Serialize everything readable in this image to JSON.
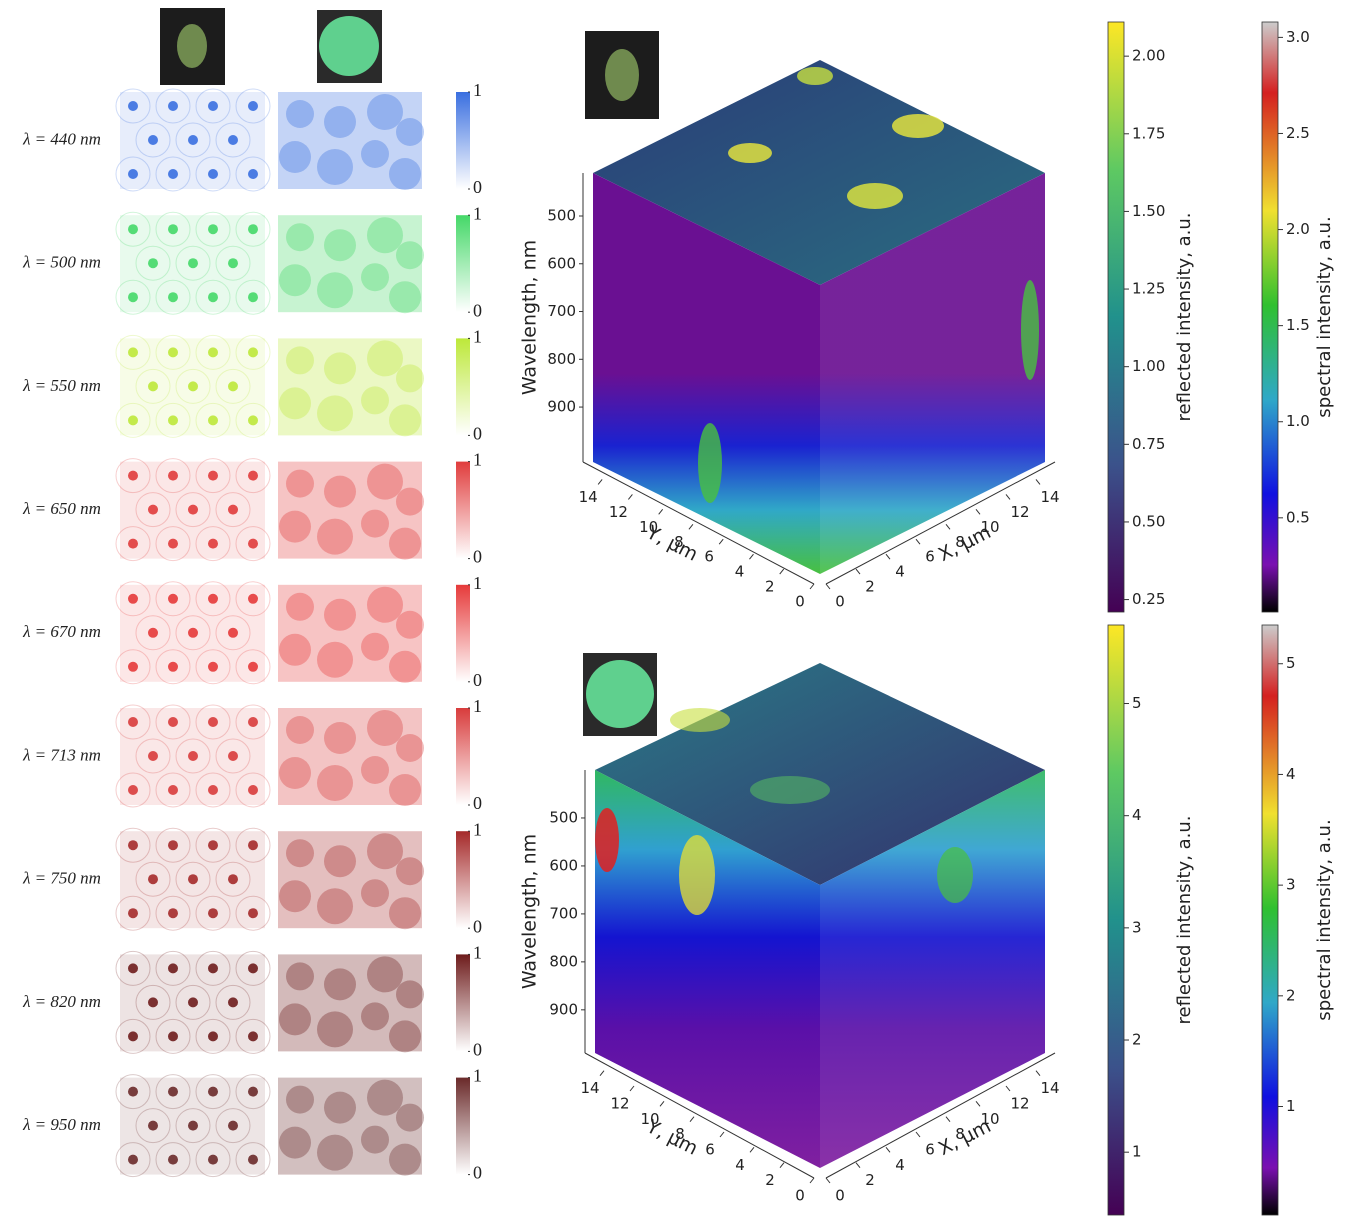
{
  "rows": [
    {
      "label": "λ = 440 nm",
      "color": "#3a6fe0",
      "clim": [
        0,
        1
      ],
      "cticks": [
        0,
        1
      ]
    },
    {
      "label": "λ = 500 nm",
      "color": "#45d868",
      "clim": [
        0,
        1
      ],
      "cticks": [
        0,
        1
      ]
    },
    {
      "label": "λ = 550 nm",
      "color": "#bde83a",
      "clim": [
        0,
        1
      ],
      "cticks": [
        0,
        1
      ]
    },
    {
      "label": "λ = 650 nm",
      "color": "#e03c3c",
      "clim": [
        0,
        1
      ],
      "cticks": [
        0,
        1
      ]
    },
    {
      "label": "λ = 670 nm",
      "color": "#e63a3a",
      "clim": [
        0,
        1
      ],
      "cticks": [
        0,
        1
      ]
    },
    {
      "label": "λ = 713 nm",
      "color": "#d83c3c",
      "clim": [
        0,
        1
      ],
      "cticks": [
        0,
        1
      ]
    },
    {
      "label": "λ = 750 nm",
      "color": "#a52a2a",
      "clim": [
        0,
        1
      ],
      "cticks": [
        0,
        1
      ]
    },
    {
      "label": "λ = 820 nm",
      "color": "#6e1c1c",
      "clim": [
        0,
        1
      ],
      "cticks": [
        0,
        1
      ]
    },
    {
      "label": "λ = 950 nm",
      "color": "#6a2a2a",
      "clim": [
        0,
        1
      ],
      "cticks": [
        0,
        1
      ]
    }
  ],
  "cubes": [
    {
      "wavelength_label": "Wavelength, nm",
      "wlim": [
        410,
        1015
      ],
      "wticks": [
        500,
        600,
        700,
        800,
        900
      ],
      "y_label": "Y, µm",
      "ylim": [
        0,
        15
      ],
      "yticks": [
        0,
        2,
        4,
        6,
        8,
        10,
        12,
        14
      ],
      "x_label": "X, µm",
      "xlim": [
        0,
        15
      ],
      "xticks": [
        0,
        2,
        4,
        6,
        8,
        10,
        12,
        14
      ],
      "reflected": {
        "label": "reflected intensity, a.u.",
        "colormap": "viridis",
        "lim": [
          0.21,
          2.11
        ],
        "ticks": [
          {
            "value": 0.25,
            "label": "0.25"
          },
          {
            "value": 0.5,
            "label": "0.50"
          },
          {
            "value": 0.75,
            "label": "0.75"
          },
          {
            "value": 1,
            "label": "1.00"
          },
          {
            "value": 1.25,
            "label": "1.25"
          },
          {
            "value": 1.5,
            "label": "1.50"
          },
          {
            "value": 1.75,
            "label": "1.75"
          },
          {
            "value": 2,
            "label": "2.00"
          }
        ]
      },
      "spectral": {
        "label": "spectral intensity, a.u.",
        "colormap": "nipy_spectral",
        "lim": [
          0.01,
          3.08
        ],
        "ticks": [
          0.5,
          {
            "value": 1,
            "label": "1.0"
          },
          1.5,
          {
            "value": 2,
            "label": "2.0"
          },
          2.5,
          {
            "value": 3,
            "label": "3.0"
          }
        ]
      }
    },
    {
      "wavelength_label": "Wavelength, nm",
      "wlim": [
        400,
        990
      ],
      "wticks": [
        500,
        600,
        700,
        800,
        900
      ],
      "y_label": "Y, µm",
      "ylim": [
        0,
        15
      ],
      "yticks": [
        0,
        2,
        4,
        6,
        8,
        10,
        12,
        14
      ],
      "x_label": "X, µm",
      "xlim": [
        0,
        15
      ],
      "xticks": [
        0,
        2,
        4,
        6,
        8,
        10,
        12,
        14
      ],
      "reflected": {
        "label": "reflected intensity, a.u.",
        "colormap": "viridis",
        "lim": [
          0.44,
          5.7
        ],
        "ticks": [
          1,
          2,
          3,
          4,
          5
        ]
      },
      "spectral": {
        "label": "spectral intensity, a.u.",
        "colormap": "nipy_spectral",
        "lim": [
          0.02,
          5.35
        ],
        "ticks": [
          1,
          2,
          3,
          4,
          5
        ]
      }
    }
  ]
}
